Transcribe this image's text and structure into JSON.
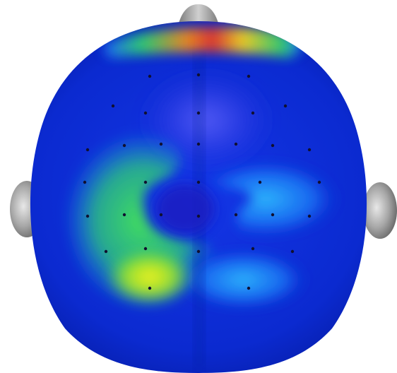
{
  "figure": {
    "kind": "scalp-topography-map",
    "view": "top",
    "colors": {
      "background": "#ffffff",
      "base": "#0b2ad0",
      "base_dark": "#051a9e",
      "cyan": "#2fb6ff",
      "green": "#39e04b",
      "yellow": "#f4f21d",
      "orange": "#f08a1a",
      "red": "#e3342a",
      "violet": "#5a5cff",
      "ear_gray": "#9b9b9b",
      "nose_gray": "#8c8c8c",
      "electrode": "#101030"
    },
    "electrode_count": 34,
    "icons": [
      "head-outline",
      "nose-icon",
      "left-ear-icon",
      "right-ear-icon"
    ]
  }
}
